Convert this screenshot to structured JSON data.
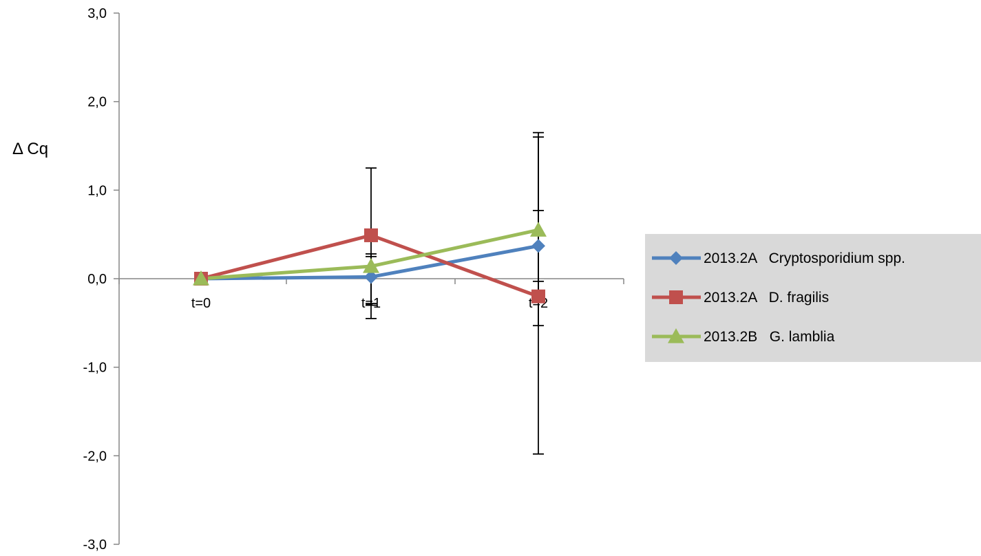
{
  "chart_data": {
    "type": "line",
    "ylabel": "Δ Cq",
    "xlabel": "",
    "categories": [
      "t=0",
      "t=1",
      "t=2"
    ],
    "ylim": [
      -3.0,
      3.0
    ],
    "yticks": [
      "3,0",
      "2,0",
      "1,0",
      "0,0",
      "-1,0",
      "-2,0",
      "-3,0"
    ],
    "ytick_values": [
      3,
      2,
      1,
      0,
      -1,
      -2,
      -3
    ],
    "grid": false,
    "legend_position": "right",
    "series": [
      {
        "name": "2013.2A   Cryptosporidium spp.",
        "color": "#4F81BD",
        "marker": "diamond",
        "values": [
          0.0,
          0.02,
          0.37
        ],
        "error_low": [
          0.0,
          -0.28,
          -0.03
        ],
        "error_high": [
          0.0,
          0.28,
          0.77
        ]
      },
      {
        "name": "2013.2A   D. fragilis",
        "color": "#C0504D",
        "marker": "square",
        "values": [
          0.0,
          0.49,
          -0.2
        ],
        "error_low": [
          0.0,
          -0.45,
          -1.98
        ],
        "error_high": [
          0.0,
          1.25,
          1.6
        ]
      },
      {
        "name": "2013.2B   G. lamblia",
        "color": "#9BBB59",
        "marker": "triangle",
        "values": [
          0.0,
          0.14,
          0.55
        ],
        "error_low": [
          0.0,
          -0.3,
          -0.53
        ],
        "error_high": [
          0.0,
          0.25,
          1.65
        ]
      }
    ]
  }
}
